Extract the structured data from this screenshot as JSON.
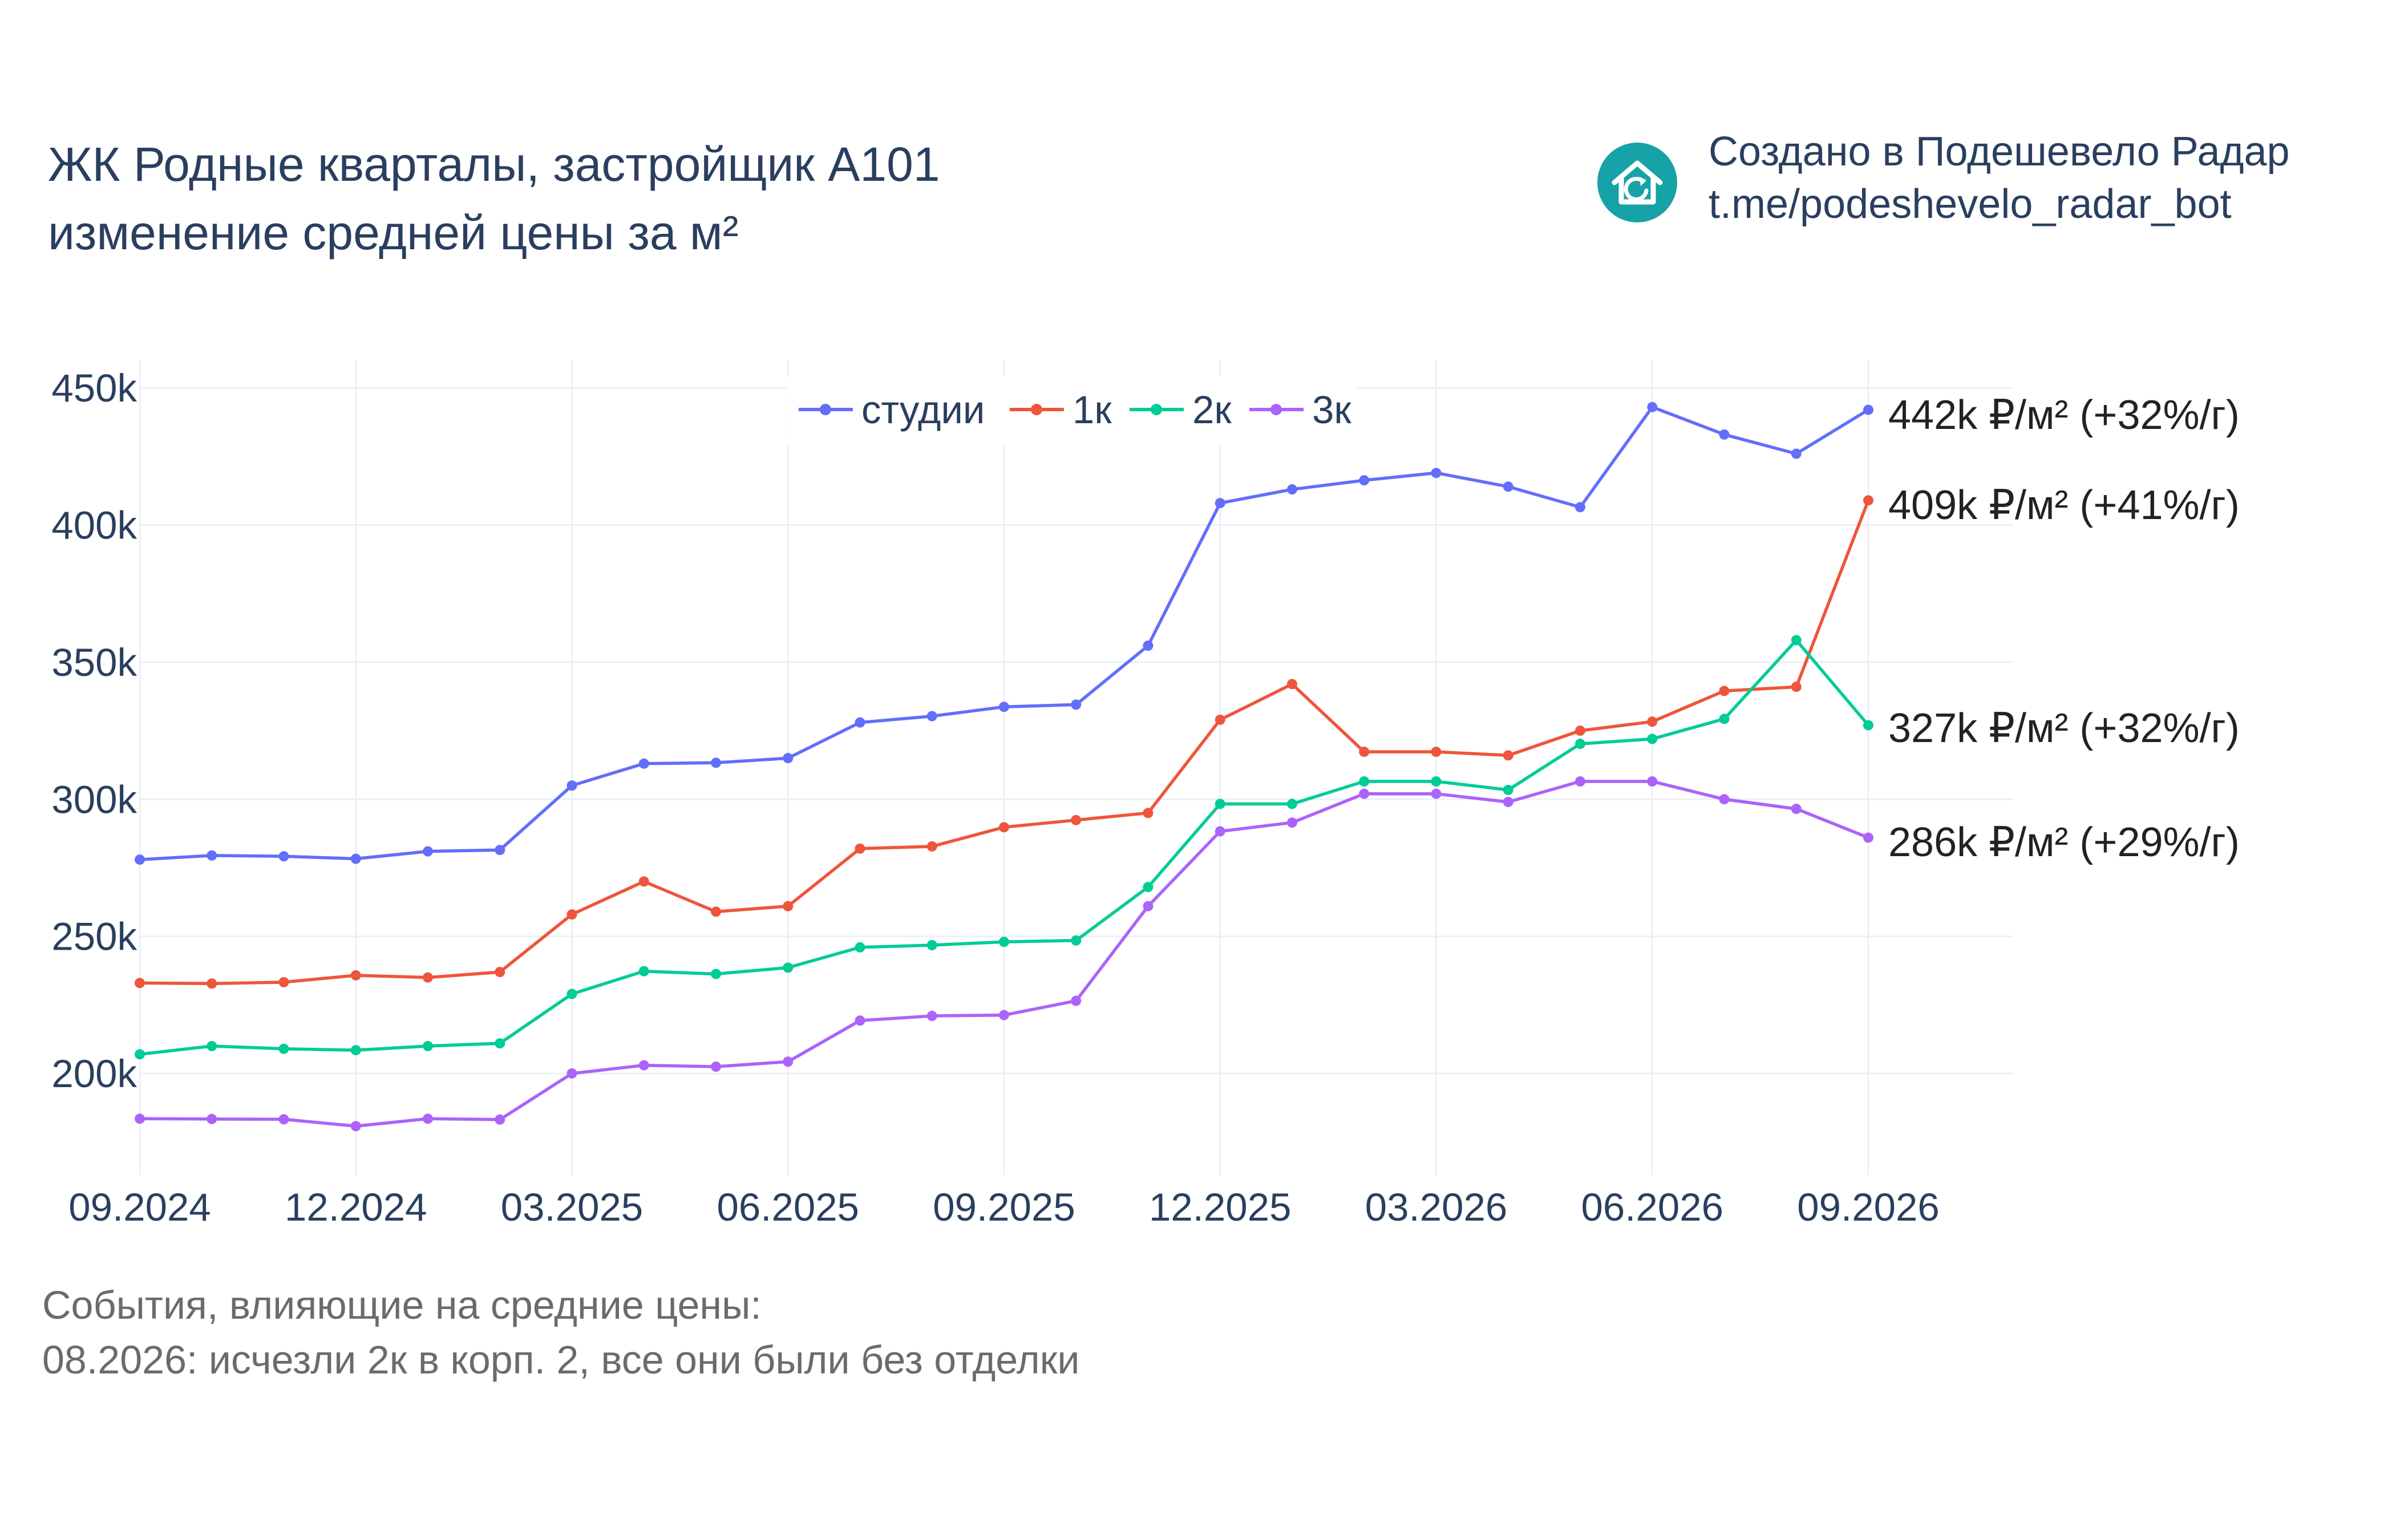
{
  "title": {
    "line1": "ЖК Родные кварталы, застройщик А101",
    "line2": "изменение средней цены за м²"
  },
  "credit": {
    "line1": "Создано в Подешевело Радар",
    "line2": "t.me/podeshevelo_radar_bot",
    "icon": "house-refresh-icon",
    "icon_color": "#17a2a8"
  },
  "events": {
    "heading": "События, влияющие на средние цены:",
    "items": [
      "08.2026: исчезли 2к в корп. 2, все они были без отделки"
    ]
  },
  "chart_data": {
    "type": "line",
    "x": [
      "09.2024",
      "10.2024",
      "11.2024",
      "12.2024",
      "01.2025",
      "02.2025",
      "03.2025",
      "04.2025",
      "05.2025",
      "06.2025",
      "07.2025",
      "08.2025",
      "09.2025",
      "10.2025",
      "11.2025",
      "12.2025",
      "01.2026",
      "02.2026",
      "03.2026",
      "04.2026",
      "05.2026",
      "06.2026",
      "07.2026",
      "08.2026",
      "09.2026"
    ],
    "x_ticks": [
      "09.2024",
      "12.2024",
      "03.2025",
      "06.2025",
      "09.2025",
      "12.2025",
      "03.2026",
      "06.2026",
      "09.2026"
    ],
    "y_ticks": [
      "200k",
      "250k",
      "300k",
      "350k",
      "400k",
      "450k"
    ],
    "y_tick_values": [
      200000,
      250000,
      300000,
      350000,
      400000,
      450000
    ],
    "ylim": [
      163000,
      460000
    ],
    "grid": true,
    "legend_placement": "top-center",
    "series": [
      {
        "name": "студии",
        "color": "#636efa",
        "values": [
          278000,
          279500,
          279200,
          278300,
          281000,
          281500,
          305000,
          313000,
          313300,
          315000,
          328000,
          330300,
          333700,
          334500,
          356000,
          408000,
          413000,
          416300,
          419000,
          414000,
          406500,
          443000,
          433000,
          426000,
          442000
        ],
        "end_label": "442k ₽/м² (+32%/г)"
      },
      {
        "name": "1к",
        "color": "#ef553b",
        "values": [
          233000,
          232800,
          233300,
          235800,
          235000,
          237000,
          258000,
          270000,
          259000,
          261000,
          282000,
          282800,
          289800,
          292400,
          295000,
          329000,
          342000,
          317300,
          317300,
          316000,
          325000,
          328300,
          339500,
          341000,
          409000
        ],
        "end_label": "409k ₽/м² (+41%/г)"
      },
      {
        "name": "2к",
        "color": "#00cc96",
        "values": [
          207000,
          210000,
          209000,
          208500,
          210000,
          211000,
          229000,
          237300,
          236300,
          238600,
          246000,
          246800,
          248000,
          248500,
          268000,
          298300,
          298300,
          306500,
          306500,
          303400,
          320200,
          322000,
          329300,
          358000,
          327000
        ],
        "end_label": "327k ₽/м² (+32%/г)"
      },
      {
        "name": "3к",
        "color": "#ab63fa",
        "values": [
          183500,
          183400,
          183300,
          180800,
          183500,
          183200,
          200000,
          203000,
          202500,
          204300,
          219300,
          221000,
          221300,
          226500,
          261000,
          288300,
          291500,
          302000,
          302000,
          299000,
          306500,
          306500,
          300000,
          296500,
          286000
        ],
        "end_label": "286k ₽/м² (+29%/г)"
      }
    ]
  }
}
